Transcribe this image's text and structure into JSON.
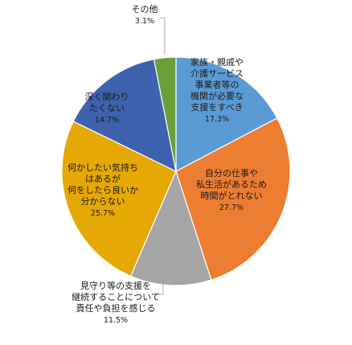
{
  "chart_data": {
    "type": "pie",
    "title": "",
    "legend": "none",
    "start_angle_deg": 0,
    "direction": "clockwise",
    "slices": [
      {
        "label": [
          "家族・親戚や",
          "介護サービス",
          "事業者等の",
          "機関が必要な",
          "支援をすべき"
        ],
        "value": 17.3,
        "value_label": "17.3%",
        "color": "#5B9BD5"
      },
      {
        "label": [
          "自分の仕事や",
          "私生活があるため",
          "時間がとれない"
        ],
        "value": 27.7,
        "value_label": "27.7%",
        "color": "#ED7D31"
      },
      {
        "label": [
          "見守り等の支援を",
          "継続することについて",
          "責任や負担を感じる"
        ],
        "value": 11.5,
        "value_label": "11.5%",
        "color": "#A5A5A5"
      },
      {
        "label": [
          "何かしたい気持ち",
          "はあるが",
          "何をしたら良いか",
          "分からない"
        ],
        "value": 25.7,
        "value_label": "25.7%",
        "color": "#E6A802"
      },
      {
        "label": [
          "深く関わり",
          "たくない"
        ],
        "value": 14.7,
        "value_label": "14.7%",
        "color": "#3E62AD"
      },
      {
        "label": [
          "その他"
        ],
        "value": 3.1,
        "value_label": "3.1%",
        "color": "#6A9F3A"
      }
    ]
  }
}
